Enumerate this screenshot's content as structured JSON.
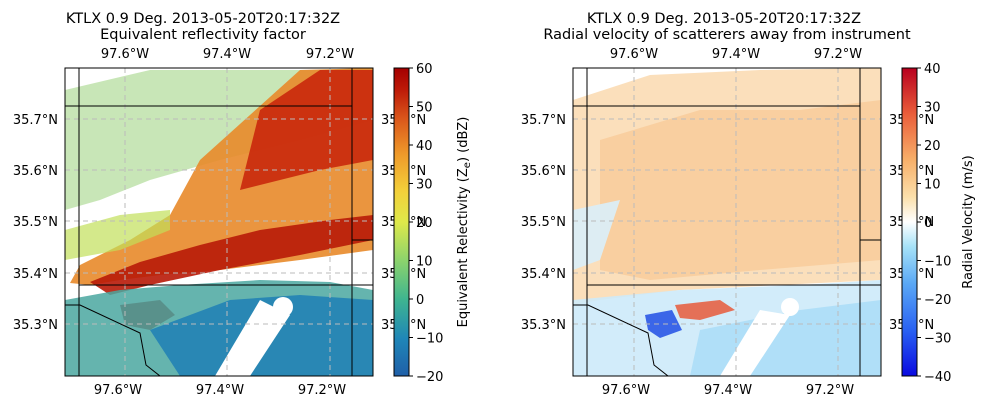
{
  "chart_data": [
    {
      "type": "heatmap",
      "title": "KTLX 0.9 Deg. 2013-05-20T20:17:32Z",
      "subtitle": "Equivalent reflectivity factor",
      "lon_ticks": [
        "97.6°W",
        "97.4°W",
        "97.2°W"
      ],
      "lon_values": [
        -97.6,
        -97.4,
        -97.2
      ],
      "lat_ticks": [
        "35.7°N",
        "35.6°N",
        "35.5°N",
        "35.4°N",
        "35.3°N"
      ],
      "lat_values": [
        35.7,
        35.6,
        35.5,
        35.4,
        35.3
      ],
      "right_lat_ticks": [
        "35.7°N",
        "35.6°N",
        "35.5°N",
        "35.4°N",
        "35.3°N"
      ],
      "xlim": [
        -97.71,
        -97.1
      ],
      "ylim": [
        35.2,
        35.8
      ],
      "colorbar": {
        "label_prefix": "Equivalent Relectivity (Z",
        "label_sub": "e",
        "label_suffix": ") (dBZ)",
        "min": -20,
        "max": 60,
        "ticks": [
          "60",
          "50",
          "40",
          "30",
          "20",
          "10",
          "0",
          "−10",
          "−20"
        ],
        "tick_values": [
          60,
          50,
          40,
          30,
          20,
          10,
          0,
          -10,
          -20
        ],
        "colors": [
          "#1f78b4",
          "#1fa3b8",
          "#4cc08a",
          "#8fd46b",
          "#d9e84a",
          "#f4d23a",
          "#f39b2a",
          "#e0611a",
          "#c92d0e",
          "#a80000"
        ]
      },
      "grid": true,
      "colormap_name": "reflectivity"
    },
    {
      "type": "heatmap",
      "title": "KTLX 0.9 Deg. 2013-05-20T20:17:32Z",
      "subtitle": "Radial velocity of scatterers away from instrument",
      "lon_ticks": [
        "97.6°W",
        "97.4°W",
        "97.2°W"
      ],
      "lon_values": [
        -97.6,
        -97.4,
        -97.2
      ],
      "lat_ticks": [
        "35.7°N",
        "35.6°N",
        "35.5°N",
        "35.4°N",
        "35.3°N"
      ],
      "lat_values": [
        35.7,
        35.6,
        35.5,
        35.4,
        35.3
      ],
      "right_lat_ticks": [
        "35.7°N",
        "35.6°N",
        "35.5°N",
        "35.4°N",
        "35.3°N"
      ],
      "xlim": [
        -97.71,
        -97.1
      ],
      "ylim": [
        35.2,
        35.8
      ],
      "colorbar": {
        "label": "Radial Velocity (m/s)",
        "min": -40,
        "max": 40,
        "ticks": [
          "40",
          "30",
          "20",
          "10",
          "0",
          "−10",
          "−20",
          "−30",
          "−40"
        ],
        "tick_values": [
          40,
          30,
          20,
          10,
          0,
          -10,
          -20,
          -30,
          -40
        ],
        "colors": [
          "#1010e8",
          "#2e6cf5",
          "#5aa6f7",
          "#a6dcf7",
          "#ffffff",
          "#fbe2b0",
          "#f8b16c",
          "#ef6b3e",
          "#d8282a",
          "#c00020"
        ]
      },
      "grid": true,
      "colormap_name": "velocity"
    }
  ]
}
